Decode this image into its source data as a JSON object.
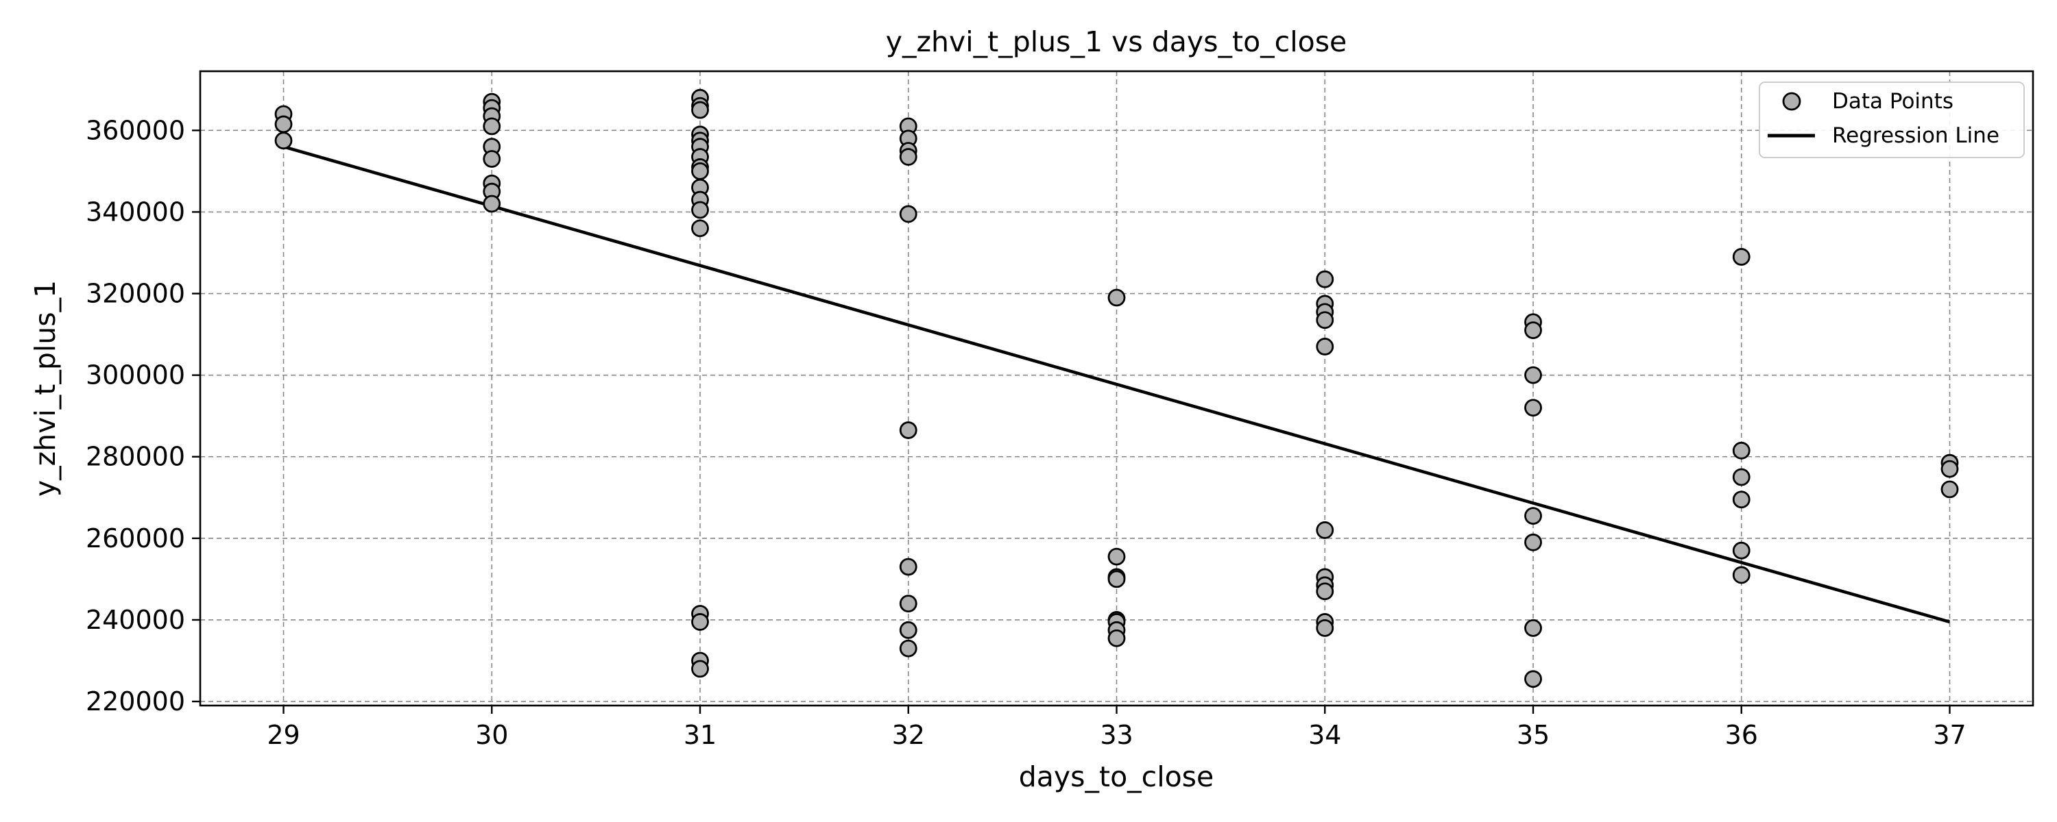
{
  "chart_data": {
    "type": "scatter",
    "title": "y_zhvi_t_plus_1 vs days_to_close",
    "xlabel": "days_to_close",
    "ylabel": "y_zhvi_t_plus_1",
    "xlim": [
      28.6,
      37.4
    ],
    "ylim": [
      219000,
      374500
    ],
    "xticks": [
      29,
      30,
      31,
      32,
      33,
      34,
      35,
      36,
      37
    ],
    "yticks": [
      220000,
      240000,
      260000,
      280000,
      300000,
      320000,
      340000,
      360000
    ],
    "grid": true,
    "legend_position": "top-right",
    "series": [
      {
        "name": "Data Points",
        "type": "scatter",
        "color": "#b0b0b0",
        "edgecolor": "#000000",
        "points": [
          [
            29,
            364000
          ],
          [
            29,
            361500
          ],
          [
            29,
            357500
          ],
          [
            30,
            367000
          ],
          [
            30,
            365500
          ],
          [
            30,
            363500
          ],
          [
            30,
            361000
          ],
          [
            30,
            356000
          ],
          [
            30,
            353000
          ],
          [
            30,
            347000
          ],
          [
            30,
            345000
          ],
          [
            30,
            342000
          ],
          [
            31,
            368000
          ],
          [
            31,
            366000
          ],
          [
            31,
            365000
          ],
          [
            31,
            359000
          ],
          [
            31,
            357500
          ],
          [
            31,
            356000
          ],
          [
            31,
            353500
          ],
          [
            31,
            351000
          ],
          [
            31,
            350000
          ],
          [
            31,
            346000
          ],
          [
            31,
            343000
          ],
          [
            31,
            340500
          ],
          [
            31,
            336000
          ],
          [
            31,
            241500
          ],
          [
            31,
            239500
          ],
          [
            31,
            230000
          ],
          [
            31,
            228000
          ],
          [
            32,
            361000
          ],
          [
            32,
            358000
          ],
          [
            32,
            355000
          ],
          [
            32,
            353500
          ],
          [
            32,
            339500
          ],
          [
            32,
            286500
          ],
          [
            32,
            253000
          ],
          [
            32,
            244000
          ],
          [
            32,
            237500
          ],
          [
            32,
            233000
          ],
          [
            33,
            319000
          ],
          [
            33,
            255500
          ],
          [
            33,
            250500
          ],
          [
            33,
            250000
          ],
          [
            33,
            240000
          ],
          [
            33,
            239500
          ],
          [
            33,
            237500
          ],
          [
            33,
            235500
          ],
          [
            34,
            323500
          ],
          [
            34,
            317500
          ],
          [
            34,
            315500
          ],
          [
            34,
            313500
          ],
          [
            34,
            307000
          ],
          [
            34,
            262000
          ],
          [
            34,
            250500
          ],
          [
            34,
            248500
          ],
          [
            34,
            247000
          ],
          [
            34,
            239500
          ],
          [
            34,
            238000
          ],
          [
            35,
            313000
          ],
          [
            35,
            311000
          ],
          [
            35,
            300000
          ],
          [
            35,
            292000
          ],
          [
            35,
            265500
          ],
          [
            35,
            259000
          ],
          [
            35,
            238000
          ],
          [
            35,
            225500
          ],
          [
            36,
            329000
          ],
          [
            36,
            281500
          ],
          [
            36,
            275000
          ],
          [
            36,
            269500
          ],
          [
            36,
            257000
          ],
          [
            36,
            251000
          ],
          [
            37,
            278500
          ],
          [
            37,
            277000
          ],
          [
            37,
            272000
          ]
        ]
      },
      {
        "name": "Regression Line",
        "type": "line",
        "color": "#000000",
        "points": [
          [
            29,
            356000
          ],
          [
            37,
            239500
          ]
        ]
      }
    ]
  }
}
